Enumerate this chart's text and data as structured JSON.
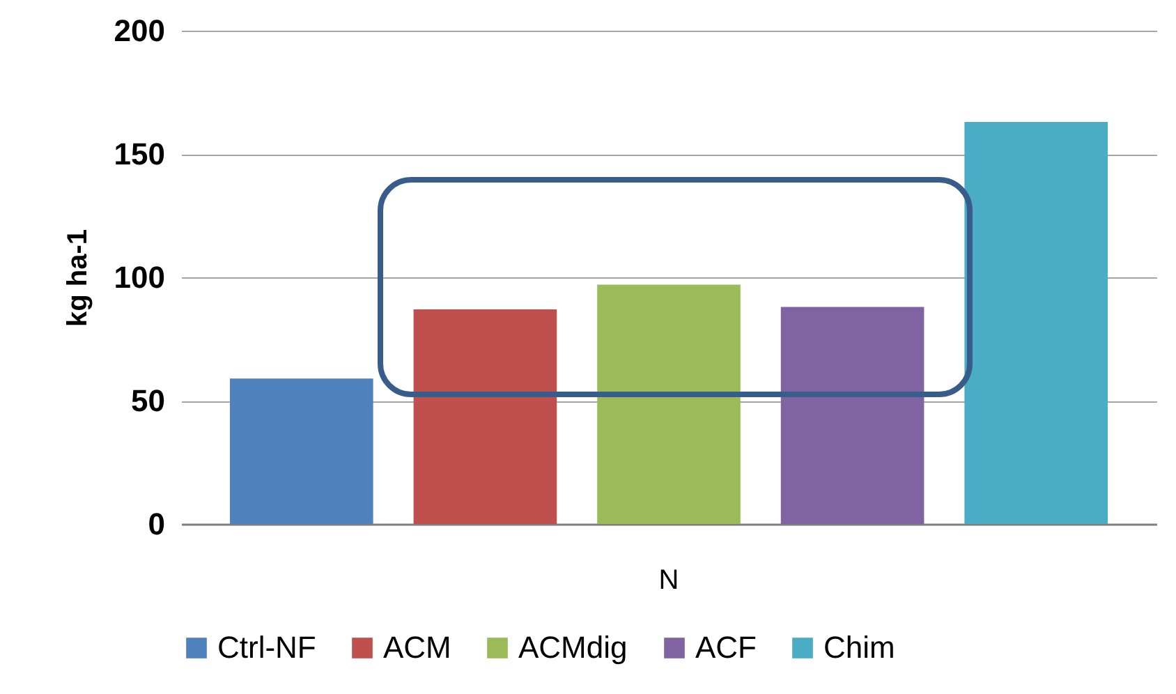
{
  "chart_data": {
    "type": "bar",
    "ylabel": "kg ha-1",
    "categories": [
      "N"
    ],
    "series": [
      {
        "name": "Ctrl-NF",
        "color": "#4f81bd",
        "values": [
          59
        ]
      },
      {
        "name": "ACM",
        "color": "#c0504d",
        "values": [
          87
        ]
      },
      {
        "name": "ACMdig",
        "color": "#9bbb59",
        "values": [
          97
        ]
      },
      {
        "name": "ACF",
        "color": "#8064a2",
        "values": [
          88
        ]
      },
      {
        "name": "Chim",
        "color": "#4bacc6",
        "values": [
          163
        ]
      }
    ],
    "ylim": [
      0,
      200
    ],
    "yticks": [
      0,
      50,
      100,
      150,
      200
    ],
    "grid": "y",
    "legend": "bottom"
  }
}
